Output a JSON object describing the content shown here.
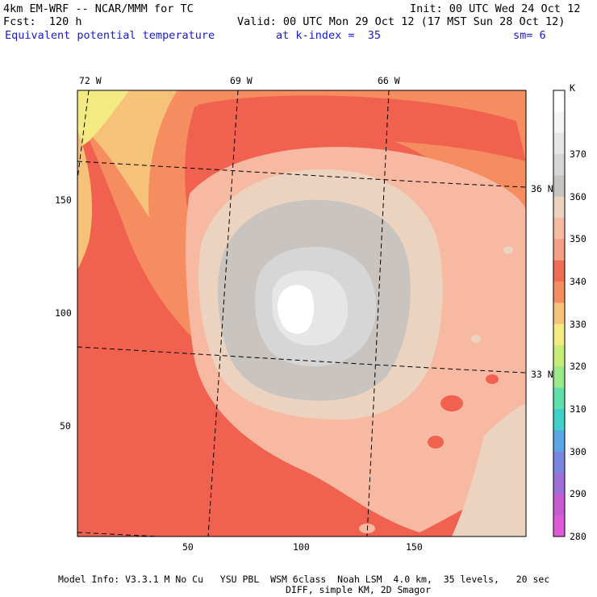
{
  "header": {
    "model": "4km EM-WRF -- NCAR/MMM for TC",
    "init": "Init: 00 UTC Wed 24 Oct 12",
    "fcst": "Fcst:  120 h",
    "valid": "Valid: 00 UTC Mon 29 Oct 12 (17 MST Sun 28 Oct 12)",
    "field": "Equivalent potential temperature",
    "level": "at k-index =  35",
    "smooth": "sm= 6"
  },
  "axes": {
    "lon_labels": [
      "72 W",
      "69 W",
      "66 W"
    ],
    "lat_labels": [
      "36 N",
      "33 N"
    ],
    "x_ticks": [
      "50",
      "100",
      "150"
    ],
    "y_ticks": [
      "150",
      "100",
      "50"
    ]
  },
  "colorbar": {
    "unit": "K",
    "labels": [
      "370",
      "360",
      "350",
      "340",
      "330",
      "320",
      "310",
      "300",
      "290",
      "280"
    ],
    "colors": [
      "#ffffff",
      "#f5f5f5",
      "#e6e6e6",
      "#d6d6d6",
      "#c9c4bf",
      "#ecd3c0",
      "#f7b9a1",
      "#f59f86",
      "#f06d55",
      "#f58d61",
      "#f6c178",
      "#f3ea82",
      "#c8ec78",
      "#9aea8a",
      "#5fdfaa",
      "#3fd1c9",
      "#5aa6e6",
      "#7c84e2",
      "#9d6fd9",
      "#c65ccf",
      "#de5bd7"
    ]
  },
  "footer": {
    "line1": "Model Info: V3.3.1 M No Cu   YSU PBL  WSM 6class  Noah LSM  4.0 km,  35 levels,   20 sec",
    "line2": "DIFF, simple KM, 2D Smagor"
  }
}
